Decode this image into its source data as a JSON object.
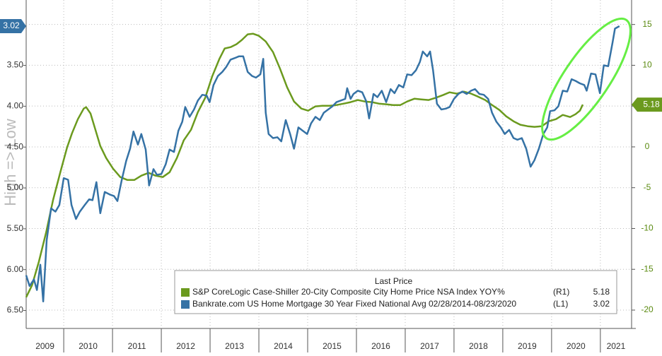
{
  "chart_data": {
    "type": "line",
    "y_axis_label": "High => Low",
    "legend_title": "Last Price",
    "legend": "bottom-right",
    "grid": true,
    "xlim": [
      2009.23,
      2021.64
    ],
    "xticks": [
      2009,
      2010,
      2011,
      2012,
      2013,
      2014,
      2015,
      2016,
      2017,
      2018,
      2019,
      2020,
      2021
    ],
    "ylim": [
      2.7,
      6.72
    ],
    "y_inverted": true,
    "yticks": [
      {
        "value": 3.5,
        "label": "3.50"
      },
      {
        "value": 4,
        "label": "4.00"
      },
      {
        "value": 4.5,
        "label": "4.50"
      },
      {
        "value": 5,
        "label": "5.00"
      },
      {
        "value": 5.5,
        "label": "5.50"
      },
      {
        "value": 6,
        "label": "6.00"
      },
      {
        "value": 6.5,
        "label": "6.50"
      }
    ],
    "y2lim": [
      -22.25,
      18
    ],
    "y2ticks": [
      15,
      10,
      5,
      0,
      -5,
      -10,
      -15,
      -20
    ],
    "series": [
      {
        "name": "S&P CoreLogic Case-Shiller 20-City Composite City Home Price NSA Index YOY%",
        "axis_tag": "(R1)",
        "axis": "y2",
        "color": "#6b9a1e",
        "x": [
          2009.23,
          2009.35,
          2009.49,
          2009.64,
          2009.78,
          2009.93,
          2010.07,
          2010.17,
          2010.29,
          2010.41,
          2010.46,
          2010.55,
          2010.65,
          2010.75,
          2010.87,
          2011.01,
          2011.16,
          2011.3,
          2011.45,
          2011.59,
          2011.74,
          2011.88,
          2012.03,
          2012.17,
          2012.32,
          2012.46,
          2012.61,
          2012.75,
          2012.9,
          2013.04,
          2013.19,
          2013.3,
          2013.42,
          2013.54,
          2013.65,
          2013.77,
          2013.88,
          2014.0,
          2014.14,
          2014.29,
          2014.43,
          2014.58,
          2014.72,
          2014.87,
          2015.01,
          2015.16,
          2015.3,
          2015.45,
          2015.59,
          2015.74,
          2015.88,
          2016.03,
          2016.17,
          2016.32,
          2016.46,
          2016.61,
          2016.75,
          2016.9,
          2017.04,
          2017.19,
          2017.33,
          2017.48,
          2017.62,
          2017.77,
          2017.91,
          2018.06,
          2018.2,
          2018.35,
          2018.49,
          2018.64,
          2018.78,
          2018.93,
          2019.07,
          2019.22,
          2019.36,
          2019.51,
          2019.65,
          2019.8,
          2019.94,
          2020.09,
          2020.23,
          2020.38,
          2020.49,
          2020.58,
          2020.64
        ],
        "values": [
          -18.42,
          -16.95,
          -14.09,
          -10.45,
          -6.56,
          -3.1,
          -0.06,
          1.67,
          3.4,
          4.7,
          4.87,
          4.09,
          2.1,
          0.11,
          -1.36,
          -2.66,
          -3.7,
          -4.05,
          -4.05,
          -3.53,
          -3.18,
          -3.53,
          -3.7,
          -3.1,
          -1.36,
          0.8,
          2.1,
          4.26,
          6.0,
          8.59,
          10.76,
          12.06,
          12.23,
          12.58,
          13.1,
          13.79,
          13.87,
          13.61,
          12.92,
          11.62,
          9.63,
          7.29,
          5.56,
          4.7,
          4.44,
          4.96,
          5.04,
          5.04,
          5.13,
          5.3,
          5.48,
          5.74,
          5.56,
          5.48,
          5.3,
          5.22,
          5.13,
          5.13,
          5.56,
          5.91,
          5.82,
          5.74,
          6.0,
          6.34,
          6.69,
          6.52,
          6.77,
          6.52,
          6.17,
          5.74,
          5.13,
          4.52,
          3.74,
          3.14,
          2.71,
          2.53,
          2.45,
          2.53,
          3.14,
          3.4,
          3.92,
          3.66,
          4.0,
          4.44,
          5.18
        ]
      },
      {
        "name": "Bankrate.com US Home Mortgage 30 Year Fixed National Avg 02/28/2014-08/23/2020",
        "axis_tag": "(L1)",
        "axis": "y",
        "color": "#3572a5",
        "x": [
          2009.23,
          2009.3,
          2009.39,
          2009.45,
          2009.52,
          2009.58,
          2009.65,
          2009.74,
          2009.83,
          2009.91,
          2010.0,
          2010.09,
          2010.16,
          2010.25,
          2010.33,
          2010.43,
          2010.52,
          2010.59,
          2010.67,
          2010.75,
          2010.84,
          2010.94,
          2011.03,
          2011.1,
          2011.19,
          2011.28,
          2011.36,
          2011.43,
          2011.52,
          2011.59,
          2011.68,
          2011.75,
          2011.84,
          2011.91,
          2012.0,
          2012.09,
          2012.17,
          2012.26,
          2012.35,
          2012.43,
          2012.49,
          2012.58,
          2012.67,
          2012.75,
          2012.84,
          2012.93,
          2012.99,
          2013.07,
          2013.16,
          2013.25,
          2013.33,
          2013.42,
          2013.51,
          2013.59,
          2013.68,
          2013.77,
          2013.86,
          2013.94,
          2014.03,
          2014.09,
          2014.14,
          2014.2,
          2014.29,
          2014.38,
          2014.46,
          2014.55,
          2014.64,
          2014.72,
          2014.81,
          2014.9,
          2014.99,
          2015.07,
          2015.16,
          2015.25,
          2015.33,
          2015.42,
          2015.51,
          2015.59,
          2015.68,
          2015.77,
          2015.81,
          2015.88,
          2015.94,
          2016.03,
          2016.12,
          2016.2,
          2016.26,
          2016.35,
          2016.43,
          2016.52,
          2016.61,
          2016.7,
          2016.78,
          2016.87,
          2016.96,
          2017.04,
          2017.13,
          2017.22,
          2017.3,
          2017.36,
          2017.45,
          2017.51,
          2017.57,
          2017.65,
          2017.74,
          2017.83,
          2017.91,
          2018.0,
          2018.09,
          2018.17,
          2018.26,
          2018.35,
          2018.43,
          2018.52,
          2018.61,
          2018.7,
          2018.78,
          2018.87,
          2018.96,
          2019.04,
          2019.13,
          2019.22,
          2019.3,
          2019.39,
          2019.48,
          2019.57,
          2019.65,
          2019.74,
          2019.83,
          2019.91,
          2019.97,
          2020.06,
          2020.14,
          2020.23,
          2020.32,
          2020.41,
          2020.49,
          2020.58,
          2020.67,
          2020.72,
          2020.81,
          2020.9,
          2020.99,
          2021.07,
          2021.16,
          2021.25,
          2021.3,
          2021.39
        ],
        "values": [
          6.07,
          6.2,
          6.12,
          6.25,
          5.94,
          6.39,
          5.64,
          5.25,
          5.29,
          5.21,
          4.88,
          4.9,
          5.21,
          5.38,
          5.29,
          5.21,
          5.14,
          5.15,
          4.93,
          5.31,
          5.05,
          5.08,
          5.1,
          5.16,
          4.9,
          4.67,
          4.52,
          4.31,
          4.47,
          4.34,
          4.53,
          4.97,
          4.77,
          4.84,
          4.83,
          4.71,
          4.53,
          4.56,
          4.3,
          4.19,
          4.01,
          4.13,
          4.04,
          3.93,
          3.86,
          3.87,
          3.95,
          3.74,
          3.63,
          3.58,
          3.52,
          3.43,
          3.41,
          3.39,
          3.39,
          3.58,
          3.63,
          3.65,
          3.61,
          3.42,
          4.08,
          4.34,
          4.39,
          4.38,
          4.43,
          4.17,
          4.34,
          4.52,
          4.26,
          4.3,
          4.34,
          4.21,
          4.13,
          4.17,
          4.08,
          4.04,
          4.0,
          3.95,
          3.93,
          3.91,
          3.78,
          3.91,
          3.85,
          3.81,
          3.83,
          3.94,
          4.15,
          3.85,
          3.89,
          3.81,
          3.95,
          3.79,
          3.84,
          3.74,
          3.77,
          3.61,
          3.62,
          3.56,
          3.46,
          3.33,
          3.39,
          3.33,
          3.56,
          3.97,
          4.04,
          4.03,
          4.01,
          3.91,
          3.85,
          3.82,
          3.85,
          3.81,
          3.79,
          3.85,
          3.86,
          3.91,
          4.08,
          4.19,
          4.26,
          4.34,
          4.29,
          4.39,
          4.41,
          4.39,
          4.52,
          4.74,
          4.66,
          4.52,
          4.34,
          4.26,
          4.06,
          4.05,
          4.0,
          3.81,
          3.82,
          3.67,
          3.69,
          3.72,
          3.74,
          3.81,
          3.6,
          3.61,
          3.84,
          3.5,
          3.51,
          3.22,
          3.05,
          3.02
        ]
      }
    ]
  }
}
